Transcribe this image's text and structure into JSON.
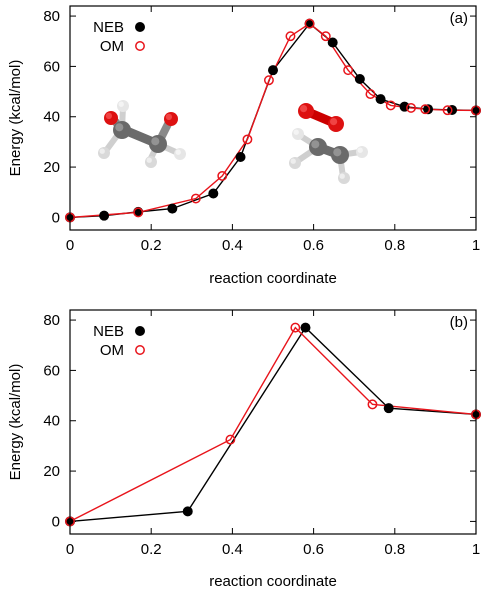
{
  "chart_data": [
    {
      "type": "line",
      "panel_label": "(a)",
      "xlabel": "reaction coordinate",
      "ylabel": "Energy (kcal/mol)",
      "xlim": [
        0,
        1
      ],
      "ylim": [
        -5,
        84
      ],
      "xticks": [
        0,
        0.2,
        0.4,
        0.6,
        0.8,
        1
      ],
      "xtick_labels": [
        "0",
        "0.2",
        "0.4",
        "0.6",
        "0.8",
        "1"
      ],
      "yticks": [
        0,
        20,
        40,
        60,
        80
      ],
      "ytick_labels": [
        "0",
        "20",
        "40",
        "60",
        "80"
      ],
      "legend_position": "top-left",
      "grid": false,
      "series": [
        {
          "name": "NEB",
          "color": "#000000",
          "marker": "filled-circle",
          "x": [
            0,
            0.084,
            0.168,
            0.252,
            0.353,
            0.42,
            0.5,
            0.59,
            0.647,
            0.714,
            0.765,
            0.824,
            0.882,
            0.941,
            1.0
          ],
          "y": [
            0,
            0.7,
            2.2,
            3.5,
            9.5,
            24,
            58.5,
            77,
            69.5,
            55,
            47,
            44,
            43,
            42.7,
            42.5
          ]
        },
        {
          "name": "OM",
          "color": "#e8141b",
          "marker": "open-circle",
          "x": [
            0,
            0.168,
            0.31,
            0.375,
            0.437,
            0.49,
            0.543,
            0.59,
            0.63,
            0.685,
            0.74,
            0.79,
            0.84,
            0.875,
            0.93,
            1.0
          ],
          "y": [
            0,
            2,
            7.5,
            16.5,
            31,
            54.5,
            72,
            77,
            72,
            58.5,
            49,
            44.5,
            43.5,
            43,
            42.6,
            42.5
          ]
        }
      ],
      "insets": [
        "molecule-reactant",
        "molecule-products"
      ]
    },
    {
      "type": "line",
      "panel_label": "(b)",
      "xlabel": "reaction coordinate",
      "ylabel": "Energy (kcal/mol)",
      "xlim": [
        0,
        1
      ],
      "ylim": [
        -5,
        84
      ],
      "xticks": [
        0,
        0.2,
        0.4,
        0.6,
        0.8,
        1
      ],
      "xtick_labels": [
        "0",
        "0.2",
        "0.4",
        "0.6",
        "0.8",
        "1"
      ],
      "yticks": [
        0,
        20,
        40,
        60,
        80
      ],
      "ytick_labels": [
        "0",
        "20",
        "40",
        "60",
        "80"
      ],
      "legend_position": "top-left",
      "grid": false,
      "series": [
        {
          "name": "NEB",
          "color": "#000000",
          "marker": "filled-circle",
          "x": [
            0,
            0.29,
            0.58,
            0.785,
            1.0
          ],
          "y": [
            0,
            4,
            77,
            45,
            42.5
          ]
        },
        {
          "name": "OM",
          "color": "#e8141b",
          "marker": "open-circle",
          "x": [
            0,
            0.395,
            0.555,
            0.745,
            1.0
          ],
          "y": [
            0,
            32.5,
            77,
            46.5,
            42.5
          ]
        }
      ]
    }
  ]
}
